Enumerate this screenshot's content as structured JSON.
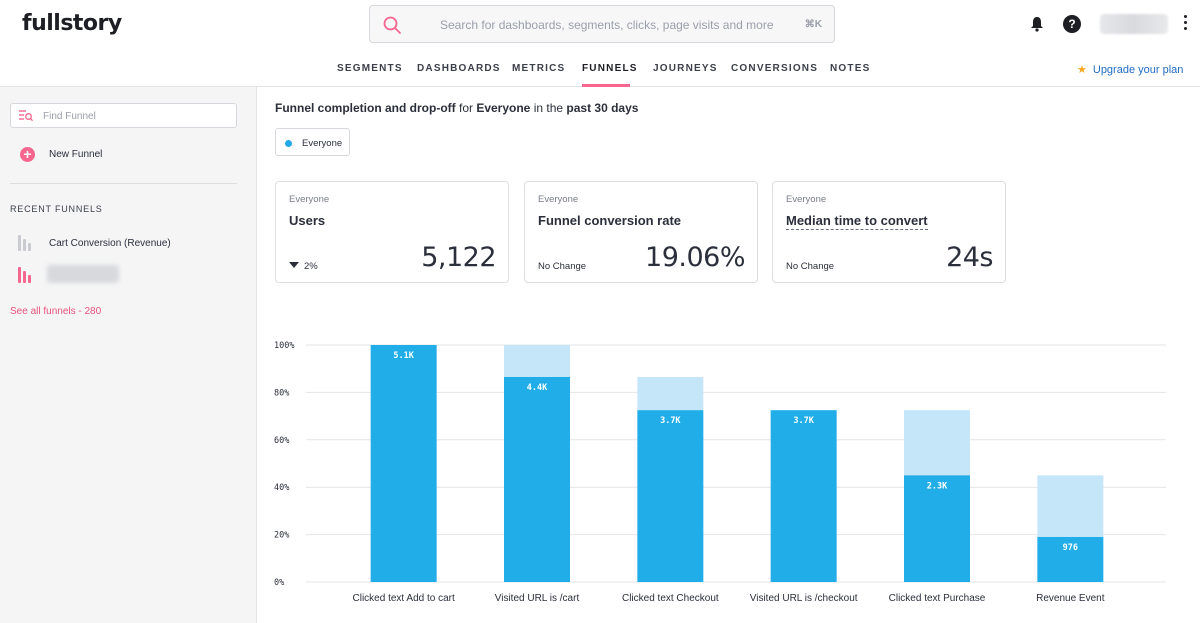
{
  "header": {
    "logo": "fullstory",
    "search_placeholder": "Search for dashboards, segments, clicks, page visits and more",
    "search_shortcut": "⌘K",
    "help_label": "?"
  },
  "nav": {
    "tabs": [
      "SEGMENTS",
      "DASHBOARDS",
      "METRICS",
      "FUNNELS",
      "JOURNEYS",
      "CONVERSIONS",
      "NOTES"
    ],
    "active_tab": "FUNNELS",
    "upgrade_star": "★",
    "upgrade_label": "Upgrade your plan"
  },
  "sidebar": {
    "find_placeholder": "Find Funnel",
    "new_funnel_label": "New Funnel",
    "recent_title": "RECENT FUNNELS",
    "recent_funnels": [
      {
        "label": "Cart Conversion (Revenue)",
        "icon_color": "#c9cbd0"
      },
      {
        "label": "",
        "icon_color": "#f6668f"
      }
    ],
    "see_all_label": "See all funnels - 280"
  },
  "main": {
    "headline_part1": "Funnel completion and drop-off",
    "headline_part2": " for ",
    "headline_part3": "Everyone",
    "headline_part4": " in the ",
    "headline_part5": "past 30 days",
    "segment_chip": "Everyone",
    "segment_color": "#21a8e8",
    "cards": [
      {
        "segment": "Everyone",
        "title": "Users",
        "change": "2%",
        "change_direction": "down",
        "value": "5,122"
      },
      {
        "segment": "Everyone",
        "title": "Funnel conversion rate",
        "change": "No Change",
        "value": "19.06%"
      },
      {
        "segment": "Everyone",
        "title": "Median time to convert",
        "change": "No Change",
        "value": "24s"
      }
    ]
  },
  "chart_data": {
    "type": "bar",
    "categories": [
      "Clicked text Add to cart",
      "Visited URL is /cart",
      "Clicked text Checkout",
      "Visited URL is /checkout",
      "Clicked text Purchase",
      "Revenue Event"
    ],
    "series": [
      {
        "values": [
          100,
          86.5,
          72.5,
          72.5,
          45,
          19
        ]
      },
      {
        "values": [
          0,
          13.5,
          14,
          0,
          27.5,
          26
        ]
      }
    ],
    "data_labels": [
      "5.1K",
      "4.4K",
      "3.7K",
      "3.7K",
      "2.3K",
      "976"
    ],
    "ylim": [
      0,
      100
    ],
    "yticks": [
      "0%",
      "20%",
      "40%",
      "60%",
      "80%",
      "100%"
    ],
    "colors": {
      "converted": "#21ade8",
      "dropoff": "#c5e6f8",
      "grid": "#e3e4e8"
    },
    "grid": true
  }
}
